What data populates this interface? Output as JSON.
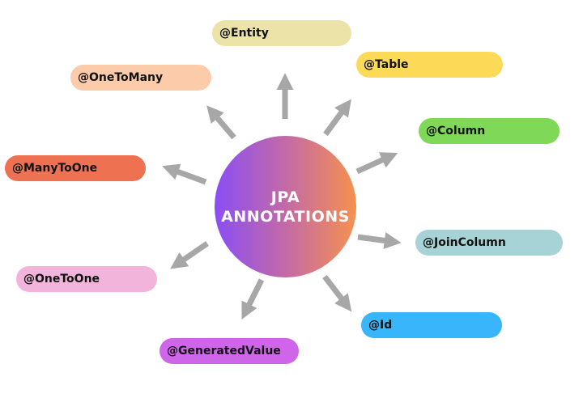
{
  "center": {
    "line1": "JPA",
    "line2": "ANNOTATIONS",
    "gradient": [
      "#8a4ef5",
      "#f5914f"
    ]
  },
  "arrow_color": "#a7a7a7",
  "annotations": [
    {
      "label": "@Entity",
      "color": "#ece3a8"
    },
    {
      "label": "@Table",
      "color": "#fcda58"
    },
    {
      "label": "@Column",
      "color": "#7fd857"
    },
    {
      "label": "@JoinColumn",
      "color": "#a8d3d6"
    },
    {
      "label": "@Id",
      "color": "#39b6fb"
    },
    {
      "label": "@GeneratedValue",
      "color": "#cf66ea"
    },
    {
      "label": "@OneToOne",
      "color": "#f3b4dc"
    },
    {
      "label": "@ManyToOne",
      "color": "#ee7252"
    },
    {
      "label": "@OneToMany",
      "color": "#fccbaa"
    }
  ]
}
